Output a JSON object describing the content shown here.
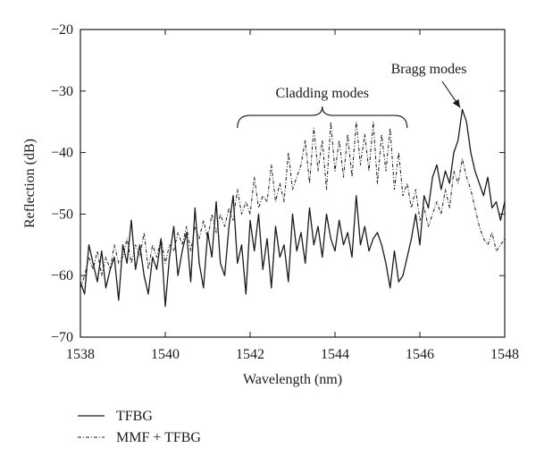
{
  "chart_data": {
    "type": "line",
    "xlabel": "Wavelength (nm)",
    "ylabel": "Reflection (dB)",
    "xlim": [
      1538,
      1548
    ],
    "ylim": [
      -70,
      -20
    ],
    "xticks": [
      1538,
      1540,
      1542,
      1544,
      1546,
      1548
    ],
    "yticks": [
      -70,
      -60,
      -50,
      -40,
      -30,
      -20
    ],
    "grid": false,
    "legend_position": "bottom-left, below plot",
    "series": [
      {
        "name": "TFBG",
        "style": "solid",
        "x": [
          1538.0,
          1538.1,
          1538.2,
          1538.3,
          1538.4,
          1538.5,
          1538.6,
          1538.7,
          1538.8,
          1538.9,
          1539.0,
          1539.1,
          1539.2,
          1539.3,
          1539.4,
          1539.5,
          1539.6,
          1539.7,
          1539.8,
          1539.9,
          1540.0,
          1540.1,
          1540.2,
          1540.3,
          1540.4,
          1540.5,
          1540.6,
          1540.7,
          1540.8,
          1540.9,
          1541.0,
          1541.1,
          1541.2,
          1541.3,
          1541.4,
          1541.5,
          1541.6,
          1541.7,
          1541.8,
          1541.9,
          1542.0,
          1542.1,
          1542.2,
          1542.3,
          1542.4,
          1542.5,
          1542.6,
          1542.7,
          1542.8,
          1542.9,
          1543.0,
          1543.1,
          1543.2,
          1543.3,
          1543.4,
          1543.5,
          1543.6,
          1543.7,
          1543.8,
          1543.9,
          1544.0,
          1544.1,
          1544.2,
          1544.3,
          1544.4,
          1544.5,
          1544.6,
          1544.7,
          1544.8,
          1544.9,
          1545.0,
          1545.1,
          1545.2,
          1545.3,
          1545.4,
          1545.5,
          1545.6,
          1545.7,
          1545.8,
          1545.9,
          1546.0,
          1546.1,
          1546.2,
          1546.3,
          1546.4,
          1546.5,
          1546.6,
          1546.7,
          1546.8,
          1546.9,
          1547.0,
          1547.1,
          1547.2,
          1547.3,
          1547.4,
          1547.5,
          1547.6,
          1547.7,
          1547.8,
          1547.9,
          1548.0
        ],
        "values": [
          -61,
          -63,
          -55,
          -58,
          -61,
          -56,
          -62,
          -59,
          -57,
          -64,
          -55,
          -58,
          -51,
          -59,
          -55,
          -60,
          -63,
          -57,
          -59,
          -54,
          -65,
          -57,
          -52,
          -60,
          -56,
          -53,
          -61,
          -49,
          -58,
          -62,
          -53,
          -57,
          -48,
          -58,
          -60,
          -52,
          -47,
          -58,
          -55,
          -63,
          -51,
          -56,
          -50,
          -59,
          -54,
          -62,
          -52,
          -57,
          -55,
          -61,
          -50,
          -56,
          -53,
          -58,
          -49,
          -55,
          -52,
          -57,
          -50,
          -54,
          -56,
          -51,
          -55,
          -53,
          -57,
          -47,
          -55,
          -52,
          -56,
          -54,
          -53,
          -55,
          -58,
          -62,
          -56,
          -61,
          -60,
          -57,
          -54,
          -50,
          -55,
          -47,
          -49,
          -44,
          -42,
          -46,
          -43,
          -45,
          -40,
          -38,
          -33,
          -35,
          -40,
          -43,
          -45,
          -47,
          -44,
          -49,
          -48,
          -51,
          -48
        ]
      },
      {
        "name": "MMF + TFBG",
        "style": "dash-dot",
        "x": [
          1538.0,
          1538.1,
          1538.2,
          1538.3,
          1538.4,
          1538.5,
          1538.6,
          1538.7,
          1538.8,
          1538.9,
          1539.0,
          1539.1,
          1539.2,
          1539.3,
          1539.4,
          1539.5,
          1539.6,
          1539.7,
          1539.8,
          1539.9,
          1540.0,
          1540.1,
          1540.2,
          1540.3,
          1540.4,
          1540.5,
          1540.6,
          1540.7,
          1540.8,
          1540.9,
          1541.0,
          1541.1,
          1541.2,
          1541.3,
          1541.4,
          1541.5,
          1541.6,
          1541.7,
          1541.8,
          1541.9,
          1542.0,
          1542.1,
          1542.2,
          1542.3,
          1542.4,
          1542.5,
          1542.6,
          1542.7,
          1542.8,
          1542.9,
          1543.0,
          1543.1,
          1543.2,
          1543.3,
          1543.4,
          1543.5,
          1543.6,
          1543.7,
          1543.8,
          1543.9,
          1544.0,
          1544.1,
          1544.2,
          1544.3,
          1544.4,
          1544.5,
          1544.6,
          1544.7,
          1544.8,
          1544.9,
          1545.0,
          1545.1,
          1545.2,
          1545.3,
          1545.4,
          1545.5,
          1545.6,
          1545.7,
          1545.8,
          1545.9,
          1546.0,
          1546.1,
          1546.2,
          1546.3,
          1546.4,
          1546.5,
          1546.6,
          1546.7,
          1546.8,
          1546.9,
          1547.0,
          1547.1,
          1547.2,
          1547.3,
          1547.4,
          1547.5,
          1547.6,
          1547.7,
          1547.8,
          1547.9,
          1548.0
        ],
        "values": [
          -62,
          -60,
          -57,
          -59,
          -56,
          -60,
          -57,
          -59,
          -55,
          -58,
          -57,
          -54,
          -58,
          -55,
          -57,
          -53,
          -59,
          -55,
          -57,
          -54,
          -58,
          -55,
          -56,
          -53,
          -55,
          -52,
          -56,
          -52,
          -54,
          -51,
          -54,
          -50,
          -53,
          -50,
          -52,
          -49,
          -51,
          -46,
          -50,
          -48,
          -50,
          -44,
          -49,
          -47,
          -48,
          -42,
          -48,
          -45,
          -48,
          -40,
          -46,
          -44,
          -42,
          -38,
          -45,
          -36,
          -43,
          -38,
          -46,
          -35,
          -43,
          -38,
          -44,
          -37,
          -44,
          -35,
          -42,
          -37,
          -43,
          -35,
          -45,
          -37,
          -43,
          -36,
          -46,
          -40,
          -47,
          -45,
          -49,
          -46,
          -51,
          -49,
          -52,
          -50,
          -48,
          -50,
          -46,
          -49,
          -43,
          -45,
          -41,
          -44,
          -46,
          -49,
          -52,
          -54,
          -55,
          -53,
          -56,
          -55,
          -54
        ]
      }
    ],
    "annotations": [
      {
        "text": "Cladding modes",
        "x_range": [
          1541.7,
          1545.7
        ],
        "y": -36
      },
      {
        "text": "Bragg modes",
        "arrow_to": [
          1546.95,
          -33
        ]
      }
    ]
  },
  "legend": [
    {
      "label": "TFBG",
      "style": "solid"
    },
    {
      "label": "MMF + TFBG",
      "style": "dash-dot"
    }
  ],
  "colors": {
    "line": "#1a1a1a",
    "background": "#ffffff"
  }
}
